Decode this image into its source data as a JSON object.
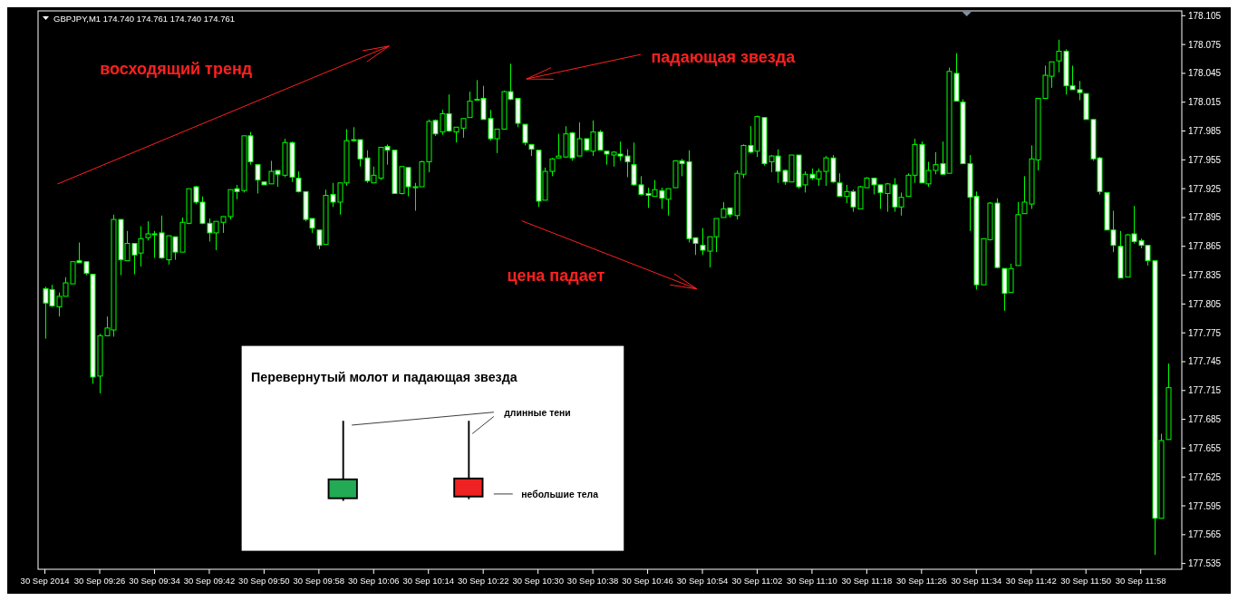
{
  "chart_data": {
    "type": "candlestick",
    "title": "GBPJPY,M1  174.740 174.761 174.740 174.761",
    "color": "#00ff00",
    "x": [
      "2014-09-30T09:18",
      "2014-09-30T09:19",
      "2014-09-30T09:20",
      "2014-09-30T09:21",
      "2014-09-30T09:22",
      "2014-09-30T09:23",
      "2014-09-30T09:24",
      "2014-09-30T09:25",
      "2014-09-30T09:26",
      "2014-09-30T09:27",
      "2014-09-30T09:28",
      "2014-09-30T09:29",
      "2014-09-30T09:30",
      "2014-09-30T09:31",
      "2014-09-30T09:32",
      "2014-09-30T09:33",
      "2014-09-30T09:34",
      "2014-09-30T09:35",
      "2014-09-30T09:36",
      "2014-09-30T09:37",
      "2014-09-30T09:38",
      "2014-09-30T09:39",
      "2014-09-30T09:40",
      "2014-09-30T09:41",
      "2014-09-30T09:42",
      "2014-09-30T09:43",
      "2014-09-30T09:44",
      "2014-09-30T09:45",
      "2014-09-30T09:46",
      "2014-09-30T09:47",
      "2014-09-30T09:48",
      "2014-09-30T09:49",
      "2014-09-30T09:50",
      "2014-09-30T09:51",
      "2014-09-30T09:52",
      "2014-09-30T09:53",
      "2014-09-30T09:54",
      "2014-09-30T09:55",
      "2014-09-30T09:56",
      "2014-09-30T09:57",
      "2014-09-30T09:58",
      "2014-09-30T09:59",
      "2014-09-30T10:00",
      "2014-09-30T10:01",
      "2014-09-30T10:02",
      "2014-09-30T10:03",
      "2014-09-30T10:04",
      "2014-09-30T10:05",
      "2014-09-30T10:06",
      "2014-09-30T10:07",
      "2014-09-30T10:08",
      "2014-09-30T10:09",
      "2014-09-30T10:10",
      "2014-09-30T10:11",
      "2014-09-30T10:12",
      "2014-09-30T10:13",
      "2014-09-30T10:14",
      "2014-09-30T10:15",
      "2014-09-30T10:16",
      "2014-09-30T10:17",
      "2014-09-30T10:18",
      "2014-09-30T10:19",
      "2014-09-30T10:20",
      "2014-09-30T10:21",
      "2014-09-30T10:22",
      "2014-09-30T10:23",
      "2014-09-30T10:24",
      "2014-09-30T10:25",
      "2014-09-30T10:26",
      "2014-09-30T10:27",
      "2014-09-30T10:28",
      "2014-09-30T10:29",
      "2014-09-30T10:30",
      "2014-09-30T10:31",
      "2014-09-30T10:32",
      "2014-09-30T10:33",
      "2014-09-30T10:34",
      "2014-09-30T10:35",
      "2014-09-30T10:36",
      "2014-09-30T10:37",
      "2014-09-30T10:38",
      "2014-09-30T10:39",
      "2014-09-30T10:40",
      "2014-09-30T10:41",
      "2014-09-30T10:42",
      "2014-09-30T10:43",
      "2014-09-30T10:44",
      "2014-09-30T10:45",
      "2014-09-30T10:46",
      "2014-09-30T10:47",
      "2014-09-30T10:48",
      "2014-09-30T10:49",
      "2014-09-30T10:50",
      "2014-09-30T10:51",
      "2014-09-30T10:52",
      "2014-09-30T10:53",
      "2014-09-30T10:54",
      "2014-09-30T10:55",
      "2014-09-30T10:56",
      "2014-09-30T10:57",
      "2014-09-30T10:58",
      "2014-09-30T10:59",
      "2014-09-30T11:00",
      "2014-09-30T11:01",
      "2014-09-30T11:02",
      "2014-09-30T11:03",
      "2014-09-30T11:04",
      "2014-09-30T11:05",
      "2014-09-30T11:06",
      "2014-09-30T11:07",
      "2014-09-30T11:08",
      "2014-09-30T11:09",
      "2014-09-30T11:10",
      "2014-09-30T11:11",
      "2014-09-30T11:12",
      "2014-09-30T11:13",
      "2014-09-30T11:14",
      "2014-09-30T11:15",
      "2014-09-30T11:16",
      "2014-09-30T11:17",
      "2014-09-30T11:18",
      "2014-09-30T11:19",
      "2014-09-30T11:20",
      "2014-09-30T11:21",
      "2014-09-30T11:22",
      "2014-09-30T11:23",
      "2014-09-30T11:24",
      "2014-09-30T11:25",
      "2014-09-30T11:26",
      "2014-09-30T11:27",
      "2014-09-30T11:28",
      "2014-09-30T11:29",
      "2014-09-30T11:30",
      "2014-09-30T11:31",
      "2014-09-30T11:32",
      "2014-09-30T11:33",
      "2014-09-30T11:34",
      "2014-09-30T11:35",
      "2014-09-30T11:36",
      "2014-09-30T11:37",
      "2014-09-30T11:38",
      "2014-09-30T11:39",
      "2014-09-30T11:40",
      "2014-09-30T11:41",
      "2014-09-30T11:42",
      "2014-09-30T11:43",
      "2014-09-30T11:44",
      "2014-09-30T11:45",
      "2014-09-30T11:46",
      "2014-09-30T11:47",
      "2014-09-30T11:48",
      "2014-09-30T11:49",
      "2014-09-30T11:50",
      "2014-09-30T11:51",
      "2014-09-30T11:52",
      "2014-09-30T11:53",
      "2014-09-30T11:54",
      "2014-09-30T11:55",
      "2014-09-30T11:56",
      "2014-09-30T11:57",
      "2014-09-30T11:58",
      "2014-09-30T11:59",
      "2014-09-30T12:00",
      "2014-09-30T12:01",
      "2014-09-30T12:02"
    ],
    "ohlc": [
      [
        177.821,
        177.823,
        177.769,
        177.806
      ],
      [
        177.82,
        177.825,
        177.802,
        177.803
      ],
      [
        177.802,
        177.817,
        177.792,
        177.813
      ],
      [
        177.813,
        177.833,
        177.813,
        177.827
      ],
      [
        177.826,
        177.849,
        177.826,
        177.849
      ],
      [
        177.85,
        177.869,
        177.848,
        177.848
      ],
      [
        177.849,
        177.849,
        177.835,
        177.837
      ],
      [
        177.836,
        177.836,
        177.722,
        177.729
      ],
      [
        177.73,
        177.774,
        177.712,
        177.772
      ],
      [
        177.772,
        177.792,
        177.772,
        177.78
      ],
      [
        177.778,
        177.898,
        177.771,
        177.893
      ],
      [
        177.893,
        177.893,
        177.835,
        177.851
      ],
      [
        177.85,
        177.881,
        177.85,
        177.868
      ],
      [
        177.868,
        177.868,
        177.836,
        177.856
      ],
      [
        177.858,
        177.886,
        177.844,
        177.873
      ],
      [
        177.874,
        177.891,
        177.871,
        177.878
      ],
      [
        177.878,
        177.881,
        177.853,
        177.877
      ],
      [
        177.879,
        177.897,
        177.852,
        177.853
      ],
      [
        177.851,
        177.876,
        177.846,
        177.876
      ],
      [
        177.875,
        177.875,
        177.851,
        177.859
      ],
      [
        177.859,
        177.895,
        177.859,
        177.89
      ],
      [
        177.889,
        177.925,
        177.888,
        177.925
      ],
      [
        177.927,
        177.928,
        177.909,
        177.911
      ],
      [
        177.911,
        177.917,
        177.888,
        177.889
      ],
      [
        177.889,
        177.894,
        177.87,
        177.879
      ],
      [
        177.879,
        177.891,
        177.861,
        177.891
      ],
      [
        177.89,
        177.896,
        177.879,
        177.896
      ],
      [
        177.896,
        177.924,
        177.893,
        177.924
      ],
      [
        177.925,
        177.929,
        177.914,
        177.922
      ],
      [
        177.923,
        177.98,
        177.921,
        177.98
      ],
      [
        177.98,
        177.984,
        177.95,
        177.953
      ],
      [
        177.95,
        177.95,
        177.92,
        177.934
      ],
      [
        177.932,
        177.932,
        177.929,
        177.929
      ],
      [
        177.93,
        177.954,
        177.93,
        177.943
      ],
      [
        177.944,
        177.944,
        177.927,
        177.94
      ],
      [
        177.939,
        177.977,
        177.937,
        177.973
      ],
      [
        177.973,
        177.974,
        177.932,
        177.937
      ],
      [
        177.936,
        177.943,
        177.921,
        177.922
      ],
      [
        177.922,
        177.922,
        177.891,
        177.893
      ],
      [
        177.894,
        177.894,
        177.879,
        177.884
      ],
      [
        177.882,
        177.882,
        177.862,
        177.866
      ],
      [
        177.867,
        177.924,
        177.867,
        177.918
      ],
      [
        177.919,
        177.931,
        177.906,
        177.911
      ],
      [
        177.911,
        177.931,
        177.898,
        177.931
      ],
      [
        177.931,
        177.987,
        177.928,
        177.975
      ],
      [
        177.976,
        177.989,
        177.974,
        177.975
      ],
      [
        177.976,
        177.976,
        177.948,
        177.956
      ],
      [
        177.957,
        177.965,
        177.931,
        177.933
      ],
      [
        177.931,
        177.948,
        177.931,
        177.939
      ],
      [
        177.936,
        177.968,
        177.934,
        177.968
      ],
      [
        177.969,
        177.971,
        177.95,
        177.965
      ],
      [
        177.965,
        177.965,
        177.92,
        177.92
      ],
      [
        177.92,
        177.948,
        177.919,
        177.948
      ],
      [
        177.947,
        177.947,
        177.917,
        177.927
      ],
      [
        177.926,
        177.931,
        177.902,
        177.927
      ],
      [
        177.927,
        177.954,
        177.927,
        177.953
      ],
      [
        177.953,
        177.997,
        177.942,
        177.995
      ],
      [
        177.996,
        177.997,
        177.98,
        177.982
      ],
      [
        177.984,
        178.007,
        177.981,
        178.003
      ],
      [
        178.003,
        178.023,
        177.984,
        177.985
      ],
      [
        177.984,
        177.989,
        177.973,
        177.989
      ],
      [
        177.988,
        177.998,
        177.978,
        177.998
      ],
      [
        177.999,
        178.026,
        177.999,
        178.016
      ],
      [
        178.018,
        178.038,
        178.017,
        178.017
      ],
      [
        178.019,
        178.032,
        177.997,
        177.997
      ],
      [
        177.998,
        178.007,
        177.975,
        177.977
      ],
      [
        177.977,
        177.987,
        177.962,
        177.987
      ],
      [
        177.987,
        178.027,
        177.987,
        178.026
      ],
      [
        178.026,
        178.055,
        178.017,
        178.018
      ],
      [
        178.019,
        178.019,
        177.989,
        177.993
      ],
      [
        177.992,
        177.992,
        177.97,
        177.973
      ],
      [
        177.971,
        177.971,
        177.959,
        177.966
      ],
      [
        177.965,
        177.965,
        177.906,
        177.912
      ],
      [
        177.913,
        177.947,
        177.913,
        177.943
      ],
      [
        177.943,
        177.957,
        177.938,
        177.956
      ],
      [
        177.957,
        177.982,
        177.957,
        177.959
      ],
      [
        177.958,
        177.99,
        177.957,
        177.982
      ],
      [
        177.983,
        177.984,
        177.954,
        177.957
      ],
      [
        177.959,
        177.994,
        177.959,
        177.977
      ],
      [
        177.977,
        177.977,
        177.964,
        177.965
      ],
      [
        177.964,
        177.996,
        177.959,
        177.984
      ],
      [
        177.984,
        177.986,
        177.965,
        177.965
      ],
      [
        177.964,
        177.964,
        177.95,
        177.961
      ],
      [
        177.96,
        177.964,
        177.948,
        177.963
      ],
      [
        177.961,
        177.974,
        177.954,
        177.959
      ],
      [
        177.959,
        177.966,
        177.937,
        177.953
      ],
      [
        177.95,
        177.973,
        177.928,
        177.929
      ],
      [
        177.929,
        177.938,
        177.918,
        177.919
      ],
      [
        177.92,
        177.926,
        177.905,
        177.918
      ],
      [
        177.917,
        177.934,
        177.917,
        177.924
      ],
      [
        177.923,
        177.926,
        177.904,
        177.915
      ],
      [
        177.914,
        177.925,
        177.897,
        177.925
      ],
      [
        177.926,
        177.954,
        177.926,
        177.954
      ],
      [
        177.954,
        177.956,
        177.938,
        177.951
      ],
      [
        177.953,
        177.965,
        177.869,
        177.873
      ],
      [
        177.874,
        177.874,
        177.856,
        177.868
      ],
      [
        177.866,
        177.884,
        177.856,
        177.861
      ],
      [
        177.86,
        177.875,
        177.843,
        177.875
      ],
      [
        177.875,
        177.894,
        177.859,
        177.894
      ],
      [
        177.895,
        177.911,
        177.895,
        177.904
      ],
      [
        177.905,
        177.905,
        177.895,
        177.898
      ],
      [
        177.897,
        177.944,
        177.893,
        177.941
      ],
      [
        177.94,
        177.971,
        177.936,
        177.97
      ],
      [
        177.97,
        177.99,
        177.962,
        177.963
      ],
      [
        177.964,
        178.001,
        177.958,
        178.0
      ],
      [
        177.999,
        177.999,
        177.949,
        177.951
      ],
      [
        177.953,
        177.96,
        177.942,
        177.959
      ],
      [
        177.959,
        177.966,
        177.931,
        177.943
      ],
      [
        177.944,
        177.945,
        177.929,
        177.932
      ],
      [
        177.932,
        177.96,
        177.932,
        177.96
      ],
      [
        177.96,
        177.96,
        177.925,
        177.927
      ],
      [
        177.929,
        177.943,
        177.921,
        177.94
      ],
      [
        177.94,
        177.946,
        177.934,
        177.936
      ],
      [
        177.935,
        177.946,
        177.928,
        177.943
      ],
      [
        177.943,
        177.959,
        177.928,
        177.957
      ],
      [
        177.957,
        177.96,
        177.931,
        177.932
      ],
      [
        177.931,
        177.941,
        177.917,
        177.917
      ],
      [
        177.917,
        177.929,
        177.91,
        177.922
      ],
      [
        177.922,
        177.924,
        177.901,
        177.906
      ],
      [
        177.904,
        177.928,
        177.904,
        177.927
      ],
      [
        177.926,
        177.937,
        177.926,
        177.936
      ],
      [
        177.936,
        177.936,
        177.919,
        177.929
      ],
      [
        177.929,
        177.929,
        177.904,
        177.921
      ],
      [
        177.92,
        177.931,
        177.901,
        177.93
      ],
      [
        177.929,
        177.936,
        177.901,
        177.906
      ],
      [
        177.906,
        177.921,
        177.897,
        177.916
      ],
      [
        177.917,
        177.941,
        177.917,
        177.939
      ],
      [
        177.939,
        177.977,
        177.931,
        177.971
      ],
      [
        177.971,
        177.974,
        177.931,
        177.931
      ],
      [
        177.93,
        177.953,
        177.927,
        177.944
      ],
      [
        177.944,
        177.963,
        177.94,
        177.95
      ],
      [
        177.951,
        177.974,
        177.94,
        177.94
      ],
      [
        177.941,
        178.051,
        177.941,
        178.047
      ],
      [
        178.045,
        178.066,
        178.016,
        178.016
      ],
      [
        178.015,
        178.018,
        177.951,
        177.951
      ],
      [
        177.951,
        177.96,
        177.881,
        177.916
      ],
      [
        177.917,
        177.922,
        177.82,
        177.825
      ],
      [
        177.825,
        177.873,
        177.825,
        177.873
      ],
      [
        177.872,
        177.911,
        177.871,
        177.91
      ],
      [
        177.91,
        177.915,
        177.842,
        177.843
      ],
      [
        177.842,
        177.842,
        177.798,
        177.816
      ],
      [
        177.817,
        177.847,
        177.817,
        177.842
      ],
      [
        177.845,
        177.911,
        177.845,
        177.898
      ],
      [
        177.899,
        177.938,
        177.899,
        177.911
      ],
      [
        177.909,
        177.97,
        177.904,
        177.956
      ],
      [
        177.955,
        178.019,
        177.944,
        178.019
      ],
      [
        178.019,
        178.053,
        178.019,
        178.043
      ],
      [
        178.042,
        178.057,
        178.03,
        178.057
      ],
      [
        178.058,
        178.08,
        178.046,
        178.068
      ],
      [
        178.068,
        178.07,
        178.023,
        178.032
      ],
      [
        178.032,
        178.053,
        178.028,
        178.028
      ],
      [
        178.028,
        178.037,
        178.017,
        178.025
      ],
      [
        178.024,
        178.024,
        177.997,
        177.997
      ],
      [
        177.997,
        177.997,
        177.954,
        177.956
      ],
      [
        177.957,
        177.958,
        177.919,
        177.922
      ],
      [
        177.921,
        177.921,
        177.882,
        177.882
      ],
      [
        177.882,
        177.902,
        177.859,
        177.866
      ],
      [
        177.865,
        177.881,
        177.832,
        177.832
      ],
      [
        177.833,
        177.878,
        177.833,
        177.877
      ],
      [
        177.878,
        177.907,
        177.868,
        177.87
      ],
      [
        177.871,
        177.873,
        177.863,
        177.866
      ],
      [
        177.866,
        177.866,
        177.845,
        177.85
      ],
      [
        177.85,
        177.85,
        177.544,
        177.582
      ],
      [
        177.582,
        177.67,
        177.582,
        177.663
      ],
      [
        177.664,
        177.743,
        177.664,
        177.718
      ]
    ],
    "xlim": [
      "2014-09-30T09:17",
      "2014-09-30T12:04"
    ],
    "xticks": [
      {
        "value": "2014-09-30T09:18",
        "label": "30 Sep 2014"
      },
      {
        "value": "2014-09-30T09:26",
        "label": "30 Sep 09:26"
      },
      {
        "value": "2014-09-30T09:34",
        "label": "30 Sep 09:34"
      },
      {
        "value": "2014-09-30T09:42",
        "label": "30 Sep 09:42"
      },
      {
        "value": "2014-09-30T09:50",
        "label": "30 Sep 09:50"
      },
      {
        "value": "2014-09-30T09:58",
        "label": "30 Sep 09:58"
      },
      {
        "value": "2014-09-30T10:06",
        "label": "30 Sep 10:06"
      },
      {
        "value": "2014-09-30T10:14",
        "label": "30 Sep 10:14"
      },
      {
        "value": "2014-09-30T10:22",
        "label": "30 Sep 10:22"
      },
      {
        "value": "2014-09-30T10:30",
        "label": "30 Sep 10:30"
      },
      {
        "value": "2014-09-30T10:38",
        "label": "30 Sep 10:38"
      },
      {
        "value": "2014-09-30T10:46",
        "label": "30 Sep 10:46"
      },
      {
        "value": "2014-09-30T10:54",
        "label": "30 Sep 10:54"
      },
      {
        "value": "2014-09-30T11:02",
        "label": "30 Sep 11:02"
      },
      {
        "value": "2014-09-30T11:10",
        "label": "30 Sep 11:10"
      },
      {
        "value": "2014-09-30T11:18",
        "label": "30 Sep 11:18"
      },
      {
        "value": "2014-09-30T11:26",
        "label": "30 Sep 11:26"
      },
      {
        "value": "2014-09-30T11:34",
        "label": "30 Sep 11:34"
      },
      {
        "value": "2014-09-30T11:42",
        "label": "30 Sep 11:42"
      },
      {
        "value": "2014-09-30T11:50",
        "label": "30 Sep 11:50"
      },
      {
        "value": "2014-09-30T11:58",
        "label": "30 Sep 11:58"
      }
    ],
    "ylim": [
      177.529,
      178.11
    ],
    "yticks": [
      177.535,
      177.565,
      177.595,
      177.625,
      177.655,
      177.685,
      177.715,
      177.745,
      177.775,
      177.805,
      177.835,
      177.865,
      177.895,
      177.925,
      177.955,
      177.985,
      178.015,
      178.045,
      178.075,
      178.105
    ],
    "annotations": [
      "восходящий тренд",
      "падающая звезда",
      "цена падает",
      "Перевернутый молот и падающая звезда",
      "длинные тени",
      "небольшие тела"
    ]
  }
}
